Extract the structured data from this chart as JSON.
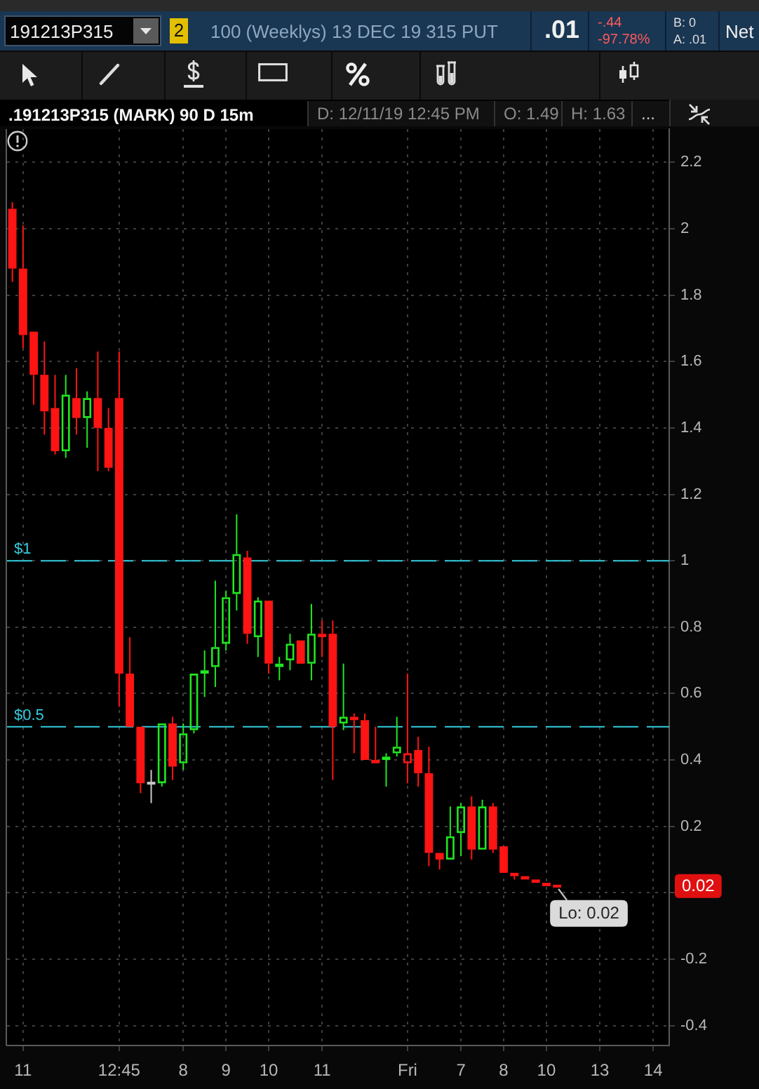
{
  "chart_data": {
    "type": "candlestick",
    "title": "100 (Weeklys) 13 DEC 19 315 PUT",
    "subtitle": ".191213P315 (MARK) 90 D 15m",
    "categories": [
      null,
      "11",
      null,
      null,
      null,
      null,
      null,
      null,
      null,
      null,
      "12:45",
      null,
      null,
      null,
      null,
      null,
      "8",
      null,
      null,
      null,
      "9",
      null,
      null,
      null,
      "10",
      null,
      null,
      null,
      null,
      "11",
      null,
      null,
      null,
      null,
      null,
      null,
      null,
      "Fri",
      null,
      null,
      null,
      null,
      "7",
      null,
      null,
      null,
      "8",
      null,
      null,
      null,
      "10",
      null,
      null,
      null,
      null,
      "13",
      null,
      null,
      null,
      null,
      "14",
      null
    ],
    "ohlc": [
      [
        2.06,
        2.08,
        1.84,
        1.88
      ],
      [
        1.88,
        2.01,
        1.64,
        1.68
      ],
      [
        1.69,
        1.69,
        1.47,
        1.56
      ],
      [
        1.56,
        1.66,
        1.38,
        1.45
      ],
      [
        1.46,
        1.56,
        1.32,
        1.33
      ],
      [
        1.33,
        1.56,
        1.31,
        1.5
      ],
      [
        1.49,
        1.58,
        1.38,
        1.43
      ],
      [
        1.43,
        1.51,
        1.34,
        1.49
      ],
      [
        1.49,
        1.63,
        1.27,
        1.4
      ],
      [
        1.4,
        1.46,
        1.27,
        1.28
      ],
      [
        1.49,
        1.63,
        0.56,
        0.66
      ],
      [
        0.66,
        0.77,
        0.5,
        0.5
      ],
      [
        0.5,
        0.5,
        0.3,
        0.33
      ],
      [
        0.33,
        0.37,
        0.27,
        0.33
      ],
      [
        0.33,
        0.51,
        0.32,
        0.51
      ],
      [
        0.51,
        0.53,
        0.34,
        0.38
      ],
      [
        0.39,
        0.51,
        0.37,
        0.48
      ],
      [
        0.49,
        0.66,
        0.48,
        0.66
      ],
      [
        0.66,
        0.73,
        0.59,
        0.67
      ],
      [
        0.68,
        0.94,
        0.62,
        0.74
      ],
      [
        0.75,
        0.91,
        0.73,
        0.89
      ],
      [
        0.9,
        1.14,
        0.85,
        1.02
      ],
      [
        1.01,
        1.03,
        0.75,
        0.78
      ],
      [
        0.77,
        0.89,
        0.71,
        0.88
      ],
      [
        0.88,
        0.88,
        0.66,
        0.69
      ],
      [
        0.68,
        0.71,
        0.64,
        0.69
      ],
      [
        0.7,
        0.78,
        0.67,
        0.75
      ],
      [
        0.76,
        0.76,
        0.69,
        0.69
      ],
      [
        0.69,
        0.87,
        0.64,
        0.78
      ],
      [
        0.78,
        0.82,
        0.71,
        0.77
      ],
      [
        0.78,
        0.82,
        0.34,
        0.5
      ],
      [
        0.51,
        0.69,
        0.49,
        0.53
      ],
      [
        0.53,
        0.54,
        0.42,
        0.52
      ],
      [
        0.52,
        0.54,
        0.4,
        0.4
      ],
      [
        0.4,
        0.5,
        0.39,
        0.39
      ],
      [
        0.4,
        0.42,
        0.32,
        0.41
      ],
      [
        0.42,
        0.53,
        0.41,
        0.44
      ],
      [
        0.39,
        0.66,
        0.33,
        0.42
      ],
      [
        0.43,
        0.47,
        0.32,
        0.36
      ],
      [
        0.36,
        0.44,
        0.08,
        0.12
      ],
      [
        0.12,
        0.12,
        0.07,
        0.1
      ],
      [
        0.1,
        0.26,
        0.1,
        0.17
      ],
      [
        0.18,
        0.27,
        0.11,
        0.26
      ],
      [
        0.26,
        0.29,
        0.1,
        0.13
      ],
      [
        0.13,
        0.28,
        0.13,
        0.26
      ],
      [
        0.26,
        0.27,
        0.12,
        0.13
      ],
      [
        0.14,
        0.14,
        0.06,
        0.06
      ],
      [
        0.06,
        0.06,
        0.04,
        0.05
      ],
      [
        0.05,
        0.05,
        0.04,
        0.04
      ],
      [
        0.04,
        0.04,
        0.03,
        0.03
      ],
      [
        0.03,
        0.03,
        0.02,
        0.02
      ],
      [
        0.02,
        0.02,
        0.02,
        0.02
      ],
      null,
      null,
      null,
      null,
      null,
      null,
      null,
      null,
      null,
      null
    ],
    "colors": [
      "#ff1414",
      "#ff1414",
      "#ff1414",
      "#ff1414",
      "#ff1414",
      "#22e622",
      "#ff1414",
      "#22e622",
      "#ff1414",
      "#ff1414",
      "#ff1414",
      "#ff1414",
      "#ff1414",
      "#c8c8c8",
      "#22e622",
      "#ff1414",
      "#22e622",
      "#22e622",
      "#22e622",
      "#22e622",
      "#22e622",
      "#22e622",
      "#ff1414",
      "#22e622",
      "#ff1414",
      "#22e622",
      "#22e622",
      "#ff1414",
      "#22e622",
      "#ff1414",
      "#ff1414",
      "#22e622",
      "#ff1414",
      "#ff1414",
      "#ff1414",
      "#22e622",
      "#22e622",
      "#ff1414",
      "#ff1414",
      "#ff1414",
      "#ff1414",
      "#22e622",
      "#22e622",
      "#ff1414",
      "#22e622",
      "#ff1414",
      "#ff1414",
      "#ff1414",
      "#ff1414",
      "#ff1414",
      "#ff1414",
      "#ff1414",
      null,
      null,
      null,
      null,
      null,
      null,
      null,
      null,
      null,
      null
    ],
    "ylim": [
      -0.46,
      2.3
    ],
    "yticks": [
      2.2,
      2,
      1.8,
      1.6,
      1.4,
      1.2,
      1,
      0.8,
      0.6,
      0.4,
      0.2,
      {
        "value": 0,
        "label": null
      },
      -0.2,
      -0.4
    ],
    "grid": true,
    "ref_lines": [
      {
        "axis": "y",
        "value": 1,
        "label": "$1",
        "color": "#33ccdd",
        "line_style": "dashed"
      },
      {
        "axis": "y",
        "value": 0.5,
        "label": "$0.5",
        "color": "#33ccdd",
        "line_style": "dashed"
      }
    ],
    "annotations": [
      "191213P315",
      "2",
      ".01",
      "-.44",
      "-97.78%",
      "B: 0",
      "A: .01",
      "Net",
      "D: 12/11/19 12:45 PM",
      "O: 1.49",
      "H: 1.63",
      "...",
      "Lo: 0.02",
      "0.02"
    ]
  }
}
